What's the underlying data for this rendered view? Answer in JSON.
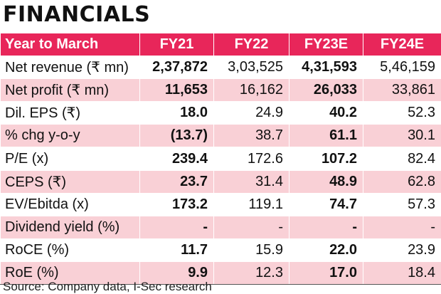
{
  "title": "FINANCIALS",
  "header": {
    "label": "Year to March",
    "years": [
      "FY21",
      "FY22",
      "FY23E",
      "FY24E"
    ]
  },
  "rows": [
    {
      "label": "Net revenue (₹ mn)",
      "values": [
        "2,37,872",
        "3,03,525",
        "4,31,593",
        "5,46,159"
      ]
    },
    {
      "label": "Net profit (₹ mn)",
      "values": [
        "11,653",
        "16,162",
        "26,033",
        "33,861"
      ]
    },
    {
      "label": "Dil. EPS (₹)",
      "values": [
        "18.0",
        "24.9",
        "40.2",
        "52.3"
      ]
    },
    {
      "label": "% chg y-o-y",
      "values": [
        "(13.7)",
        "38.7",
        "61.1",
        "30.1"
      ]
    },
    {
      "label": "P/E (x)",
      "values": [
        "239.4",
        "172.6",
        "107.2",
        "82.4"
      ]
    },
    {
      "label": "CEPS (₹)",
      "values": [
        "23.7",
        "31.4",
        "48.9",
        "62.8"
      ]
    },
    {
      "label": "EV/Ebitda (x)",
      "values": [
        "173.2",
        "119.1",
        "74.7",
        "57.3"
      ]
    },
    {
      "label": "Dividend yield (%)",
      "values": [
        "-",
        "-",
        "-",
        "-"
      ]
    },
    {
      "label": "RoCE (%)",
      "values": [
        "11.7",
        "15.9",
        "22.0",
        "23.9"
      ]
    },
    {
      "label": "RoE (%)",
      "values": [
        "9.9",
        "12.3",
        "17.0",
        "18.4"
      ]
    }
  ],
  "source": "Source: Company data, I-Sec research",
  "colors": {
    "header_bg": "#e8265a",
    "band_bg": "#f9d0d6"
  }
}
